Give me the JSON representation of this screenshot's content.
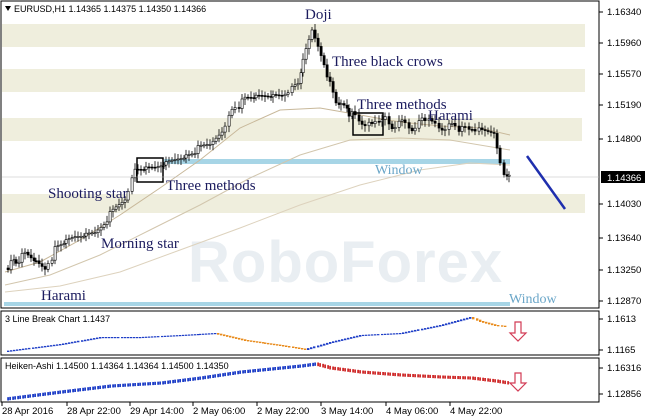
{
  "main_chart": {
    "header": "EURUSD,H1  1.14365 1.14375 1.14350 1.14366",
    "watermark": "RoboForex",
    "price_levels": [
      "1.16340",
      "1.15960",
      "1.15570",
      "1.15190",
      "1.14800",
      "1.14030",
      "1.13640",
      "1.13250",
      "1.12870"
    ],
    "current_price": "1.14366",
    "annotations": {
      "doji": "Doji",
      "three_black_crows": "Three black crows",
      "three_methods_top": "Three methods",
      "harami_top": "Harami",
      "window_top": "Window",
      "shooting_star": "Shooting star",
      "three_methods_mid": "Three methods",
      "morning_star": "Morning star",
      "harami_bottom": "Harami",
      "window_bottom": "Window"
    }
  },
  "indicator_1": {
    "header": "3 Line Break Chart 1.1437",
    "levels": [
      "1.1613",
      "1.1165"
    ]
  },
  "indicator_2": {
    "header": "Heiken-Ashi 1.14500 1.14364 1.14364 1.14500 1.14350",
    "levels": [
      "1.16316",
      "1.12856"
    ]
  },
  "time_axis": [
    "28 Apr 2016",
    "28 Apr 22:00",
    "29 Apr 14:00",
    "2 May 06:00",
    "2 May 22:00",
    "3 May 14:00",
    "4 May 06:00",
    "4 May 22:00"
  ],
  "colors": {
    "zone": "#efeedd",
    "window_line": "#a7d5e6",
    "trend_arrow": "#1f2fae",
    "down_arrow": "#d23b55",
    "bull": "#1e3ec7",
    "bear": "#e88a1a",
    "ha_bear": "#cf2b2b"
  }
}
